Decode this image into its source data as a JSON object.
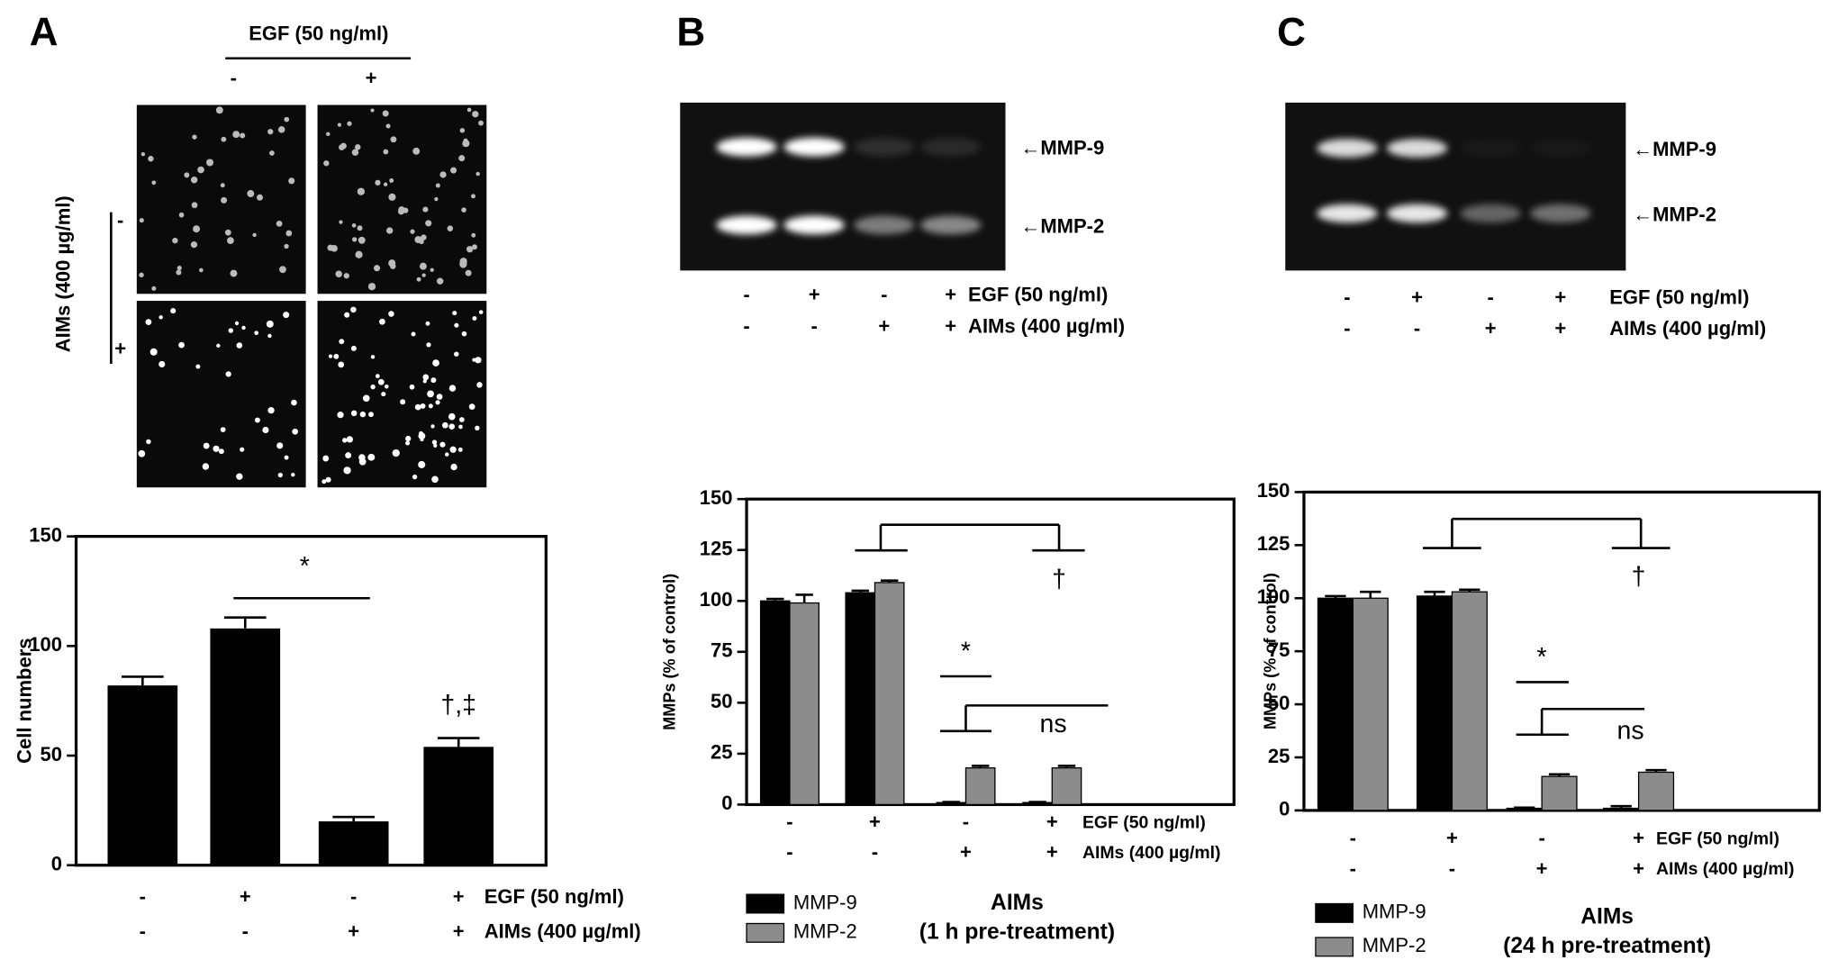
{
  "panels": {
    "a": "A",
    "b": "B",
    "c": "C"
  },
  "micrographs": {
    "egf_label": "EGF (50 ng/ml)",
    "egf_signs": [
      "-",
      "+"
    ],
    "aims_label": "AIMs (400 µg/ml)",
    "aims_signs": [
      "-",
      "+"
    ]
  },
  "gels": [
    {
      "band_labels": [
        "←MMP-9",
        "←MMP-2"
      ],
      "conditions": [
        {
          "name": "EGF  (50 ng/ml)",
          "signs": [
            "-",
            "+",
            "-",
            "+"
          ]
        },
        {
          "name": "AIMs (400 µg/ml)",
          "signs": [
            "-",
            "-",
            "+",
            "+"
          ]
        }
      ]
    },
    {
      "band_labels": [
        "←MMP-9",
        "←MMP-2"
      ],
      "conditions": [
        {
          "name": "EGF  (50 ng/ml)",
          "signs": [
            "-",
            "+",
            "-",
            "+"
          ]
        },
        {
          "name": "AIMs (400 µg/ml)",
          "signs": [
            "-",
            "-",
            "+",
            "+"
          ]
        }
      ]
    }
  ],
  "chart_data": [
    {
      "type": "bar",
      "ylabel": "Cell numbers",
      "values": [
        82,
        108,
        20,
        54
      ],
      "errors": [
        4,
        5,
        2,
        4
      ],
      "color": "#000000",
      "ylim": [
        0,
        150
      ],
      "yticks": [
        0,
        50,
        100,
        150
      ],
      "conditions": [
        {
          "name": "EGF (50 ng/ml)",
          "signs": [
            "-",
            "+",
            "-",
            "+"
          ]
        },
        {
          "name": "AIMs (400 µg/ml)",
          "signs": [
            "-",
            "-",
            "+",
            "+"
          ]
        }
      ],
      "annotations": [
        "*",
        "†,‡"
      ]
    },
    {
      "type": "grouped_bar",
      "ylabel": "MMPs (% of control)",
      "series": [
        {
          "name": "MMP-9",
          "color": "#000000",
          "values": [
            100,
            104,
            1,
            1
          ],
          "errors": [
            1,
            1,
            0.3,
            0.3
          ]
        },
        {
          "name": "MMP-2",
          "color": "#8c8c8c",
          "values": [
            99,
            109,
            18,
            18
          ],
          "errors": [
            4,
            1,
            1,
            1
          ]
        }
      ],
      "ylim": [
        0,
        150
      ],
      "yticks": [
        0,
        25,
        50,
        75,
        100,
        125,
        150
      ],
      "conditions": [
        {
          "name": "EGF  (50 ng/ml)",
          "signs": [
            "-",
            "+",
            "-",
            "+"
          ]
        },
        {
          "name": "AIMs (400 µg/ml)",
          "signs": [
            "-",
            "-",
            "+",
            "+"
          ]
        }
      ],
      "caption": [
        "AIMs",
        "(1 h pre-treatment)"
      ],
      "annotations": [
        "*",
        "ns",
        "†"
      ]
    },
    {
      "type": "grouped_bar",
      "ylabel": "MMPs (% of control)",
      "series": [
        {
          "name": "MMP-9",
          "color": "#000000",
          "values": [
            100,
            101,
            1,
            1
          ],
          "errors": [
            1,
            2,
            0.3,
            1
          ]
        },
        {
          "name": "MMP-2",
          "color": "#8c8c8c",
          "values": [
            100,
            103,
            16,
            18
          ],
          "errors": [
            3,
            1,
            1,
            1
          ]
        }
      ],
      "ylim": [
        0,
        150
      ],
      "yticks": [
        0,
        25,
        50,
        75,
        100,
        125,
        150
      ],
      "conditions": [
        {
          "name": "EGF  (50 ng/ml)",
          "signs": [
            "-",
            "+",
            "-",
            "+"
          ]
        },
        {
          "name": "AIMs (400 µg/ml)",
          "signs": [
            "-",
            "-",
            "+",
            "+"
          ]
        }
      ],
      "caption": [
        "AIMs",
        "(24 h pre-treatment)"
      ],
      "annotations": [
        "*",
        "ns",
        "†"
      ]
    }
  ]
}
